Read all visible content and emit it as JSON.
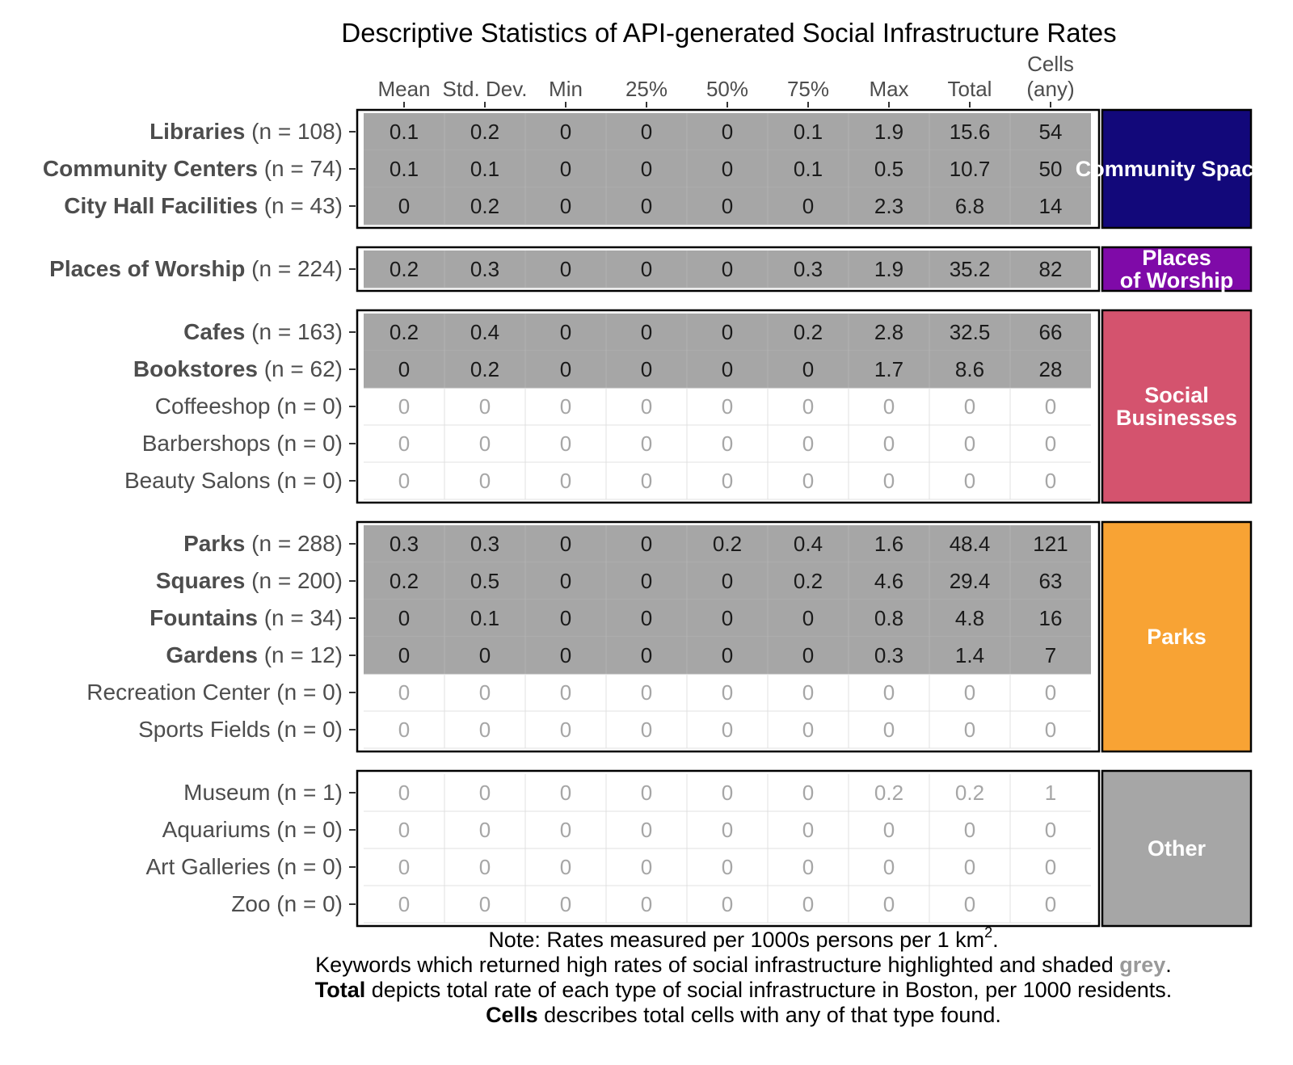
{
  "chart_data": {
    "type": "table",
    "title": "Descriptive Statistics of API-generated Social Infrastructure Rates",
    "columns": [
      "Mean",
      "Std. Dev.",
      "Min",
      "25%",
      "50%",
      "75%",
      "Max",
      "Total",
      "Cells\n(any)"
    ],
    "groups": [
      {
        "label": "Community Spaces",
        "color": "#12087a",
        "rows": [
          {
            "name": "Libraries",
            "n": "(n = 108)",
            "highlighted": true,
            "values": [
              "0.1",
              "0.2",
              "0",
              "0",
              "0",
              "0.1",
              "1.9",
              "15.6",
              "54"
            ]
          },
          {
            "name": "Community Centers",
            "n": "(n = 74)",
            "highlighted": true,
            "values": [
              "0.1",
              "0.1",
              "0",
              "0",
              "0",
              "0.1",
              "0.5",
              "10.7",
              "50"
            ]
          },
          {
            "name": "City Hall Facilities",
            "n": "(n = 43)",
            "highlighted": true,
            "values": [
              "0",
              "0.2",
              "0",
              "0",
              "0",
              "0",
              "2.3",
              "6.8",
              "14"
            ]
          }
        ]
      },
      {
        "label": "Places\nof Worship",
        "color": "#7f0aa8",
        "rows": [
          {
            "name": "Places of Worship",
            "n": "(n = 224)",
            "highlighted": true,
            "values": [
              "0.2",
              "0.3",
              "0",
              "0",
              "0",
              "0.3",
              "1.9",
              "35.2",
              "82"
            ]
          }
        ]
      },
      {
        "label": "Social\nBusinesses",
        "color": "#d4536e",
        "rows": [
          {
            "name": "Cafes",
            "n": "(n = 163)",
            "highlighted": true,
            "values": [
              "0.2",
              "0.4",
              "0",
              "0",
              "0",
              "0.2",
              "2.8",
              "32.5",
              "66"
            ]
          },
          {
            "name": "Bookstores",
            "n": "(n = 62)",
            "highlighted": true,
            "values": [
              "0",
              "0.2",
              "0",
              "0",
              "0",
              "0",
              "1.7",
              "8.6",
              "28"
            ]
          },
          {
            "name": "Coffeeshop",
            "n": "(n = 0)",
            "highlighted": false,
            "values": [
              "0",
              "0",
              "0",
              "0",
              "0",
              "0",
              "0",
              "0",
              "0"
            ]
          },
          {
            "name": "Barbershops",
            "n": "(n = 0)",
            "highlighted": false,
            "values": [
              "0",
              "0",
              "0",
              "0",
              "0",
              "0",
              "0",
              "0",
              "0"
            ]
          },
          {
            "name": "Beauty Salons",
            "n": "(n = 0)",
            "highlighted": false,
            "values": [
              "0",
              "0",
              "0",
              "0",
              "0",
              "0",
              "0",
              "0",
              "0"
            ]
          }
        ]
      },
      {
        "label": "Parks",
        "color": "#f8a334",
        "rows": [
          {
            "name": "Parks",
            "n": "(n = 288)",
            "highlighted": true,
            "values": [
              "0.3",
              "0.3",
              "0",
              "0",
              "0.2",
              "0.4",
              "1.6",
              "48.4",
              "121"
            ]
          },
          {
            "name": "Squares",
            "n": "(n = 200)",
            "highlighted": true,
            "values": [
              "0.2",
              "0.5",
              "0",
              "0",
              "0",
              "0.2",
              "4.6",
              "29.4",
              "63"
            ]
          },
          {
            "name": "Fountains",
            "n": "(n = 34)",
            "highlighted": true,
            "values": [
              "0",
              "0.1",
              "0",
              "0",
              "0",
              "0",
              "0.8",
              "4.8",
              "16"
            ]
          },
          {
            "name": "Gardens",
            "n": "(n = 12)",
            "highlighted": true,
            "values": [
              "0",
              "0",
              "0",
              "0",
              "0",
              "0",
              "0.3",
              "1.4",
              "7"
            ]
          },
          {
            "name": "Recreation Center",
            "n": "(n = 0)",
            "highlighted": false,
            "values": [
              "0",
              "0",
              "0",
              "0",
              "0",
              "0",
              "0",
              "0",
              "0"
            ]
          },
          {
            "name": "Sports Fields",
            "n": "(n = 0)",
            "highlighted": false,
            "values": [
              "0",
              "0",
              "0",
              "0",
              "0",
              "0",
              "0",
              "0",
              "0"
            ]
          }
        ]
      },
      {
        "label": "Other",
        "color": "#a6a6a6",
        "rows": [
          {
            "name": "Museum",
            "n": "(n = 1)",
            "highlighted": false,
            "values": [
              "0",
              "0",
              "0",
              "0",
              "0",
              "0",
              "0.2",
              "0.2",
              "1"
            ]
          },
          {
            "name": "Aquariums",
            "n": "(n = 0)",
            "highlighted": false,
            "values": [
              "0",
              "0",
              "0",
              "0",
              "0",
              "0",
              "0",
              "0",
              "0"
            ]
          },
          {
            "name": "Art Galleries",
            "n": "(n = 0)",
            "highlighted": false,
            "values": [
              "0",
              "0",
              "0",
              "0",
              "0",
              "0",
              "0",
              "0",
              "0"
            ]
          },
          {
            "name": "Zoo",
            "n": "(n = 0)",
            "highlighted": false,
            "values": [
              "0",
              "0",
              "0",
              "0",
              "0",
              "0",
              "0",
              "0",
              "0"
            ]
          }
        ]
      }
    ],
    "colors": {
      "highlight_fill": "#a6a6a6",
      "highlight_text": "#1a1a1a",
      "plain_text": "#a6a6a6",
      "label_text": "#4d4d4d",
      "grid": "#e0e0e0"
    }
  },
  "notes": {
    "line1_a": "Note: Rates measured per 1000s persons per 1 km",
    "line1_sup": "2",
    "line1_b": ".",
    "line2_a": "Keywords which returned high rates of social infrastructure highlighted and shaded ",
    "line2_grey": "grey",
    "line2_b": ".",
    "line3_bold": "Total",
    "line3_rest": " depicts total rate of each type of social infrastructure in Boston, per 1000 residents.",
    "line4_bold": "Cells",
    "line4_rest": " describes total cells with any of that type found."
  }
}
